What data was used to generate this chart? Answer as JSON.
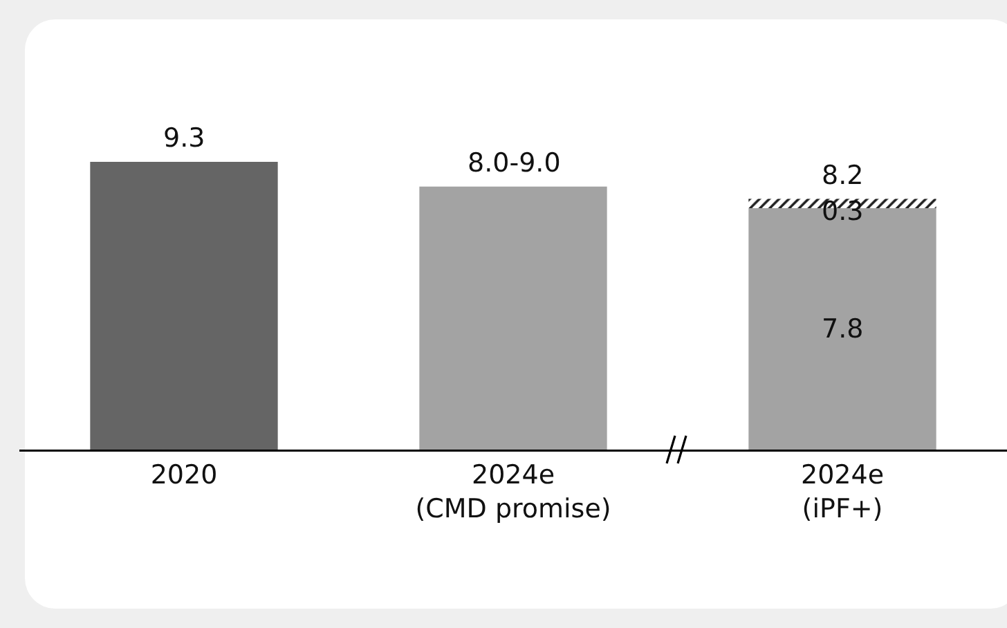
{
  "chart_data": {
    "type": "bar",
    "stacked": true,
    "categories": [
      "2020",
      "2024e\n(CMD promise)",
      "2024e\n(iPF+)"
    ],
    "series": [
      {
        "colors": [
          "#656565",
          "#a3a3a3",
          "#a3a3a3"
        ],
        "values": [
          9.3,
          8.5,
          7.8
        ],
        "value_labels": [
          null,
          null,
          "7.8"
        ]
      },
      {
        "color": "#222222",
        "values": [
          null,
          null,
          0.3
        ],
        "value_labels": [
          null,
          null,
          "0.3"
        ]
      }
    ],
    "totals": [
      "9.3",
      "8.0-9.0",
      "8.2"
    ],
    "grid": false
  }
}
